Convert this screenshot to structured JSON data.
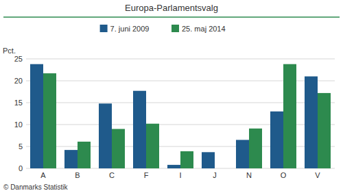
{
  "chart_data": {
    "type": "bar",
    "title": "Europa-Parlamentsvalg",
    "categories": [
      "A",
      "B",
      "C",
      "F",
      "I",
      "J",
      "N",
      "O",
      "V"
    ],
    "series": [
      {
        "name": "7. juni 2009",
        "color": "#1f5a8b",
        "values": [
          23.8,
          4.2,
          14.8,
          17.7,
          0.8,
          3.7,
          6.5,
          13.0,
          21.0
        ]
      },
      {
        "name": "25. maj 2014",
        "color": "#2d8a4e",
        "values": [
          21.7,
          6.1,
          9.0,
          10.2,
          3.9,
          0.0,
          9.1,
          23.8,
          17.2
        ]
      }
    ],
    "ylabel": "Pct.",
    "ylim": [
      0,
      25
    ],
    "yticks": [
      0,
      5,
      10,
      15,
      20,
      25
    ],
    "grid": true,
    "legend": "top",
    "annotations": [
      "© Danmarks Statistik"
    ]
  }
}
